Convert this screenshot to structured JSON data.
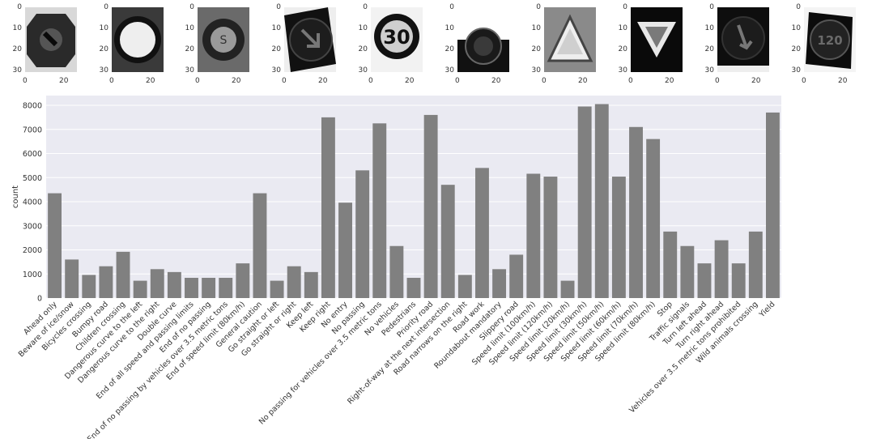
{
  "thumbnails": [
    {
      "kind": "octagon-arrow",
      "yticks": [
        "0",
        "10",
        "20",
        "30"
      ],
      "xticks": [
        "0",
        "20"
      ]
    },
    {
      "kind": "circle-light",
      "yticks": [
        "0",
        "10",
        "20",
        "30"
      ],
      "xticks": [
        "0",
        "20"
      ]
    },
    {
      "kind": "circle-noisy",
      "yticks": [
        "0",
        "10",
        "20",
        "30"
      ],
      "xticks": [
        "0",
        "20"
      ]
    },
    {
      "kind": "circle-arrow",
      "yticks": [
        "0",
        "10",
        "20",
        "30"
      ],
      "xticks": [
        "0",
        "20"
      ]
    },
    {
      "kind": "speed-30",
      "text": "30",
      "yticks": [
        "0",
        "10",
        "20",
        "30"
      ],
      "xticks": [
        "0",
        "20"
      ]
    },
    {
      "kind": "circle-dark",
      "yticks": [
        "0",
        "10",
        "20",
        "30"
      ],
      "xticks": [
        "0",
        "20"
      ]
    },
    {
      "kind": "triangle-up",
      "yticks": [
        "0",
        "10",
        "20",
        "30"
      ],
      "xticks": [
        "0",
        "20"
      ]
    },
    {
      "kind": "yield",
      "yticks": [
        "0",
        "10",
        "20",
        "30"
      ],
      "xticks": [
        "0",
        "20"
      ]
    },
    {
      "kind": "circle-arrow-down",
      "yticks": [
        "0",
        "10",
        "20",
        "30"
      ],
      "xticks": [
        "0",
        "20"
      ]
    },
    {
      "kind": "speed-120",
      "text": "120",
      "yticks": [
        "0",
        "10",
        "20",
        "30"
      ],
      "xticks": [
        "0",
        "20"
      ]
    }
  ],
  "chart_data": {
    "type": "bar",
    "ylabel": "count",
    "xlabel": "",
    "ylim": [
      0,
      8000
    ],
    "yticks": [
      0,
      1000,
      2000,
      3000,
      4000,
      5000,
      6000,
      7000,
      8000
    ],
    "grid": true,
    "bar_color": "#808080",
    "background": "#eaeaf2",
    "categories": [
      "Ahead only",
      "Beware of ice/snow",
      "Bicycles crossing",
      "Bumpy road",
      "Children crossing",
      "Dangerous curve to the left",
      "Dangerous curve to the right",
      "Double curve",
      "End of all speed and passing limits",
      "End of no passing",
      "End of no passing by vehicles over 3.5 metric tons",
      "End of speed limit (80km/h)",
      "General caution",
      "Go straight or left",
      "Go straight or right",
      "Keep left",
      "Keep right",
      "No entry",
      "No passing",
      "No passing for vehicles over 3.5 metric tons",
      "No vehicles",
      "Pedestrians",
      "Priority road",
      "Right-of-way at the next intersection",
      "Road narrows on the right",
      "Road work",
      "Roundabout mandatory",
      "Slippery road",
      "Speed limit (100km/h)",
      "Speed limit (120km/h)",
      "Speed limit (20km/h)",
      "Speed limit (30km/h)",
      "Speed limit (50km/h)",
      "Speed limit (60km/h)",
      "Speed limit (70km/h)",
      "Speed limit (80km/h)",
      "Stop",
      "Traffic signals",
      "Turn left ahead",
      "Turn right ahead",
      "Vehicles over 3.5 metric tons prohibited",
      "Wild animals crossing",
      "Yield"
    ],
    "values": [
      4350,
      1600,
      960,
      1320,
      1920,
      720,
      1200,
      1080,
      840,
      840,
      840,
      1440,
      4350,
      720,
      1320,
      1080,
      7500,
      3960,
      5300,
      7250,
      2160,
      840,
      7600,
      4700,
      960,
      5400,
      1200,
      1800,
      5160,
      5040,
      720,
      7950,
      8050,
      5040,
      7100,
      6600,
      2760,
      2160,
      1440,
      2400,
      1440,
      2760,
      7700
    ]
  }
}
